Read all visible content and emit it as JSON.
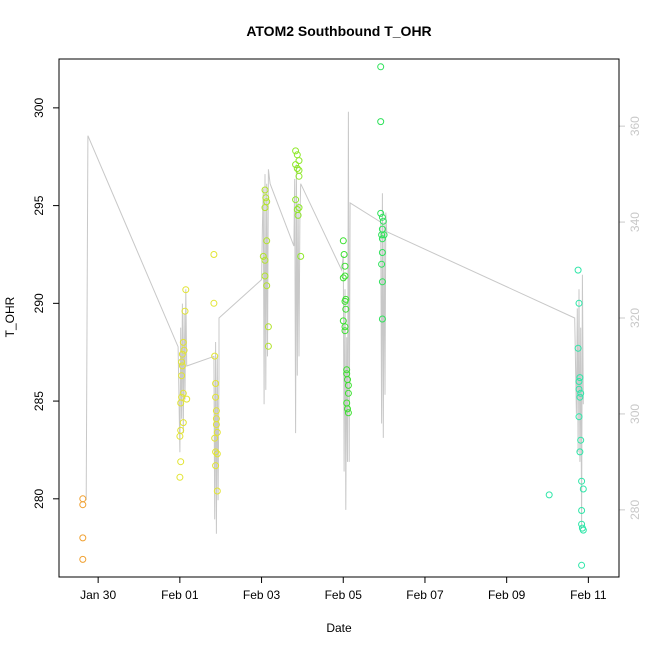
{
  "chart_data": {
    "type": "scatter",
    "title": "ATOM2 Southbound T_OHR",
    "xlabel": "Date",
    "ylabel": "T_OHR",
    "x_ticks": [
      {
        "date": "2022-01-30",
        "label": "Jan 30"
      },
      {
        "date": "2022-02-01",
        "label": "Feb 01"
      },
      {
        "date": "2022-02-03",
        "label": "Feb 03"
      },
      {
        "date": "2022-02-05",
        "label": "Feb 05"
      },
      {
        "date": "2022-02-07",
        "label": "Feb 07"
      },
      {
        "date": "2022-02-09",
        "label": "Feb 09"
      },
      {
        "date": "2022-02-11",
        "label": "Feb 11"
      }
    ],
    "xlim": [
      "2022-01-29T01:00",
      "2022-02-11T18:00"
    ],
    "ylim": [
      276,
      302.5
    ],
    "y_ticks": [
      280,
      285,
      290,
      295,
      300
    ],
    "y2lim": [
      266,
      374
    ],
    "y2_ticks": [
      280,
      300,
      320,
      340,
      360
    ],
    "y2_color": "#c8c8c8",
    "grid": false,
    "series": [
      {
        "color": "#f0a030",
        "points": [
          [
            "2022-01-29T15:00",
            280.0
          ],
          [
            "2022-01-29T15:00",
            279.7
          ],
          [
            "2022-01-29T15:00",
            278.0
          ],
          [
            "2022-01-29T15:00",
            276.9
          ]
        ]
      },
      {
        "color": "#e2e433",
        "points": [
          [
            "2022-02-01T00:00",
            283.2
          ],
          [
            "2022-02-01T00:30",
            284.9
          ],
          [
            "2022-02-01T01:00",
            285.2
          ],
          [
            "2022-02-01T01:00",
            286.3
          ],
          [
            "2022-02-01T01:30",
            286.8
          ],
          [
            "2022-02-01T01:30",
            287.4
          ],
          [
            "2022-02-01T02:00",
            288.0
          ],
          [
            "2022-02-01T02:30",
            287.6
          ],
          [
            "2022-02-01T01:00",
            287.0
          ],
          [
            "2022-02-01T02:00",
            285.4
          ],
          [
            "2022-02-01T03:00",
            289.6
          ],
          [
            "2022-02-01T03:30",
            290.7
          ],
          [
            "2022-02-01T00:30",
            283.5
          ],
          [
            "2022-02-01T00:30",
            281.9
          ],
          [
            "2022-02-01T00:00",
            281.1
          ],
          [
            "2022-02-01T04:00",
            285.1
          ],
          [
            "2022-02-01T02:00",
            283.9
          ],
          [
            "2022-02-01T20:00",
            292.5
          ],
          [
            "2022-02-01T20:00",
            290.0
          ],
          [
            "2022-02-01T20:30",
            287.3
          ],
          [
            "2022-02-01T21:00",
            285.9
          ],
          [
            "2022-02-01T21:00",
            285.2
          ],
          [
            "2022-02-01T21:30",
            284.5
          ],
          [
            "2022-02-01T21:30",
            283.8
          ],
          [
            "2022-02-01T22:00",
            283.4
          ],
          [
            "2022-02-01T20:30",
            283.1
          ],
          [
            "2022-02-01T21:00",
            282.4
          ],
          [
            "2022-02-01T22:00",
            282.3
          ],
          [
            "2022-02-01T21:00",
            281.7
          ],
          [
            "2022-02-01T22:00",
            280.4
          ],
          [
            "2022-02-01T21:30",
            284.1
          ]
        ]
      },
      {
        "color": "#b2e42a",
        "points": [
          [
            "2022-02-03T02:00",
            295.8
          ],
          [
            "2022-02-03T02:30",
            295.4
          ],
          [
            "2022-02-03T03:00",
            295.2
          ],
          [
            "2022-02-03T02:00",
            294.9
          ],
          [
            "2022-02-03T01:00",
            292.4
          ],
          [
            "2022-02-03T02:00",
            292.2
          ],
          [
            "2022-02-03T03:00",
            293.2
          ],
          [
            "2022-02-03T02:00",
            291.4
          ],
          [
            "2022-02-03T03:00",
            290.9
          ],
          [
            "2022-02-03T04:00",
            288.8
          ],
          [
            "2022-02-03T04:00",
            287.8
          ]
        ]
      },
      {
        "color": "#8fe82a",
        "points": [
          [
            "2022-02-03T20:00",
            297.8
          ],
          [
            "2022-02-03T21:00",
            297.6
          ],
          [
            "2022-02-03T22:00",
            297.3
          ],
          [
            "2022-02-03T20:00",
            297.1
          ],
          [
            "2022-02-03T21:00",
            296.9
          ],
          [
            "2022-02-03T22:00",
            296.8
          ],
          [
            "2022-02-03T22:00",
            296.5
          ],
          [
            "2022-02-03T20:00",
            295.3
          ],
          [
            "2022-02-03T21:00",
            294.8
          ],
          [
            "2022-02-03T22:00",
            294.9
          ],
          [
            "2022-02-03T21:30",
            294.5
          ],
          [
            "2022-02-03T23:00",
            292.4
          ]
        ]
      },
      {
        "color": "#3ce030",
        "points": [
          [
            "2022-02-05T00:00",
            293.2
          ],
          [
            "2022-02-05T00:30",
            292.5
          ],
          [
            "2022-02-05T01:00",
            291.9
          ],
          [
            "2022-02-05T00:00",
            291.3
          ],
          [
            "2022-02-05T01:00",
            291.4
          ],
          [
            "2022-02-05T01:30",
            290.2
          ],
          [
            "2022-02-05T01:00",
            290.1
          ],
          [
            "2022-02-05T01:30",
            289.7
          ],
          [
            "2022-02-05T00:00",
            289.1
          ],
          [
            "2022-02-05T01:00",
            288.8
          ],
          [
            "2022-02-05T01:00",
            288.6
          ],
          [
            "2022-02-05T02:00",
            286.6
          ],
          [
            "2022-02-05T02:00",
            286.4
          ],
          [
            "2022-02-05T02:30",
            286.1
          ],
          [
            "2022-02-05T03:00",
            285.8
          ],
          [
            "2022-02-05T03:00",
            285.4
          ],
          [
            "2022-02-05T02:00",
            284.9
          ],
          [
            "2022-02-05T02:30",
            284.6
          ],
          [
            "2022-02-05T03:00",
            284.4
          ]
        ]
      },
      {
        "color": "#2ee25a",
        "points": [
          [
            "2022-02-05T22:00",
            302.1
          ],
          [
            "2022-02-05T22:00",
            299.3
          ],
          [
            "2022-02-05T22:00",
            294.6
          ],
          [
            "2022-02-05T23:00",
            294.4
          ],
          [
            "2022-02-05T23:30",
            294.2
          ],
          [
            "2022-02-05T23:00",
            293.8
          ],
          [
            "2022-02-05T22:30",
            293.5
          ],
          [
            "2022-02-05T23:00",
            293.3
          ],
          [
            "2022-02-06T00:00",
            293.5
          ],
          [
            "2022-02-05T23:00",
            292.6
          ],
          [
            "2022-02-05T22:30",
            292.0
          ],
          [
            "2022-02-05T23:00",
            291.1
          ],
          [
            "2022-02-05T23:00",
            289.2
          ]
        ]
      },
      {
        "color": "#2ee6a8",
        "points": [
          [
            "2022-02-10T01:00",
            280.2
          ],
          [
            "2022-02-10T18:00",
            291.7
          ],
          [
            "2022-02-10T18:30",
            290.0
          ],
          [
            "2022-02-10T18:00",
            287.7
          ],
          [
            "2022-02-10T19:00",
            286.2
          ],
          [
            "2022-02-10T18:30",
            286.0
          ],
          [
            "2022-02-10T18:30",
            285.6
          ],
          [
            "2022-02-10T19:30",
            285.4
          ],
          [
            "2022-02-10T19:00",
            285.2
          ],
          [
            "2022-02-10T18:30",
            284.2
          ],
          [
            "2022-02-10T19:30",
            283.0
          ],
          [
            "2022-02-10T19:00",
            282.4
          ],
          [
            "2022-02-10T20:00",
            280.9
          ],
          [
            "2022-02-10T21:00",
            280.5
          ],
          [
            "2022-02-10T20:00",
            279.4
          ],
          [
            "2022-02-10T20:00",
            278.7
          ],
          [
            "2022-02-10T21:00",
            278.4
          ],
          [
            "2022-02-10T20:30",
            278.5
          ],
          [
            "2022-02-10T20:00",
            276.6
          ]
        ]
      }
    ],
    "secondary_line": {
      "color": "#c8c8c8",
      "axis": "right",
      "points": [
        [
          "2022-01-29T17:00",
          282
        ],
        [
          "2022-01-29T18:00",
          358
        ],
        [
          "2022-01-31T23:00",
          314
        ],
        [
          "2022-02-01T00:00",
          292
        ],
        [
          "2022-02-01T00:30",
          318
        ],
        [
          "2022-02-01T01:00",
          299
        ],
        [
          "2022-02-01T01:30",
          323
        ],
        [
          "2022-02-01T02:00",
          296
        ],
        [
          "2022-02-01T02:30",
          321
        ],
        [
          "2022-02-01T03:00",
          303
        ],
        [
          "2022-02-01T03:30",
          326
        ],
        [
          "2022-02-01T04:00",
          310
        ],
        [
          "2022-02-01T20:00",
          312
        ],
        [
          "2022-02-01T20:30",
          278
        ],
        [
          "2022-02-01T21:00",
          315
        ],
        [
          "2022-02-01T21:30",
          275
        ],
        [
          "2022-02-01T22:00",
          312
        ],
        [
          "2022-02-01T22:30",
          282
        ],
        [
          "2022-02-01T23:00",
          308
        ],
        [
          "2022-02-01T23:00",
          320
        ],
        [
          "2022-02-03T00:00",
          328
        ],
        [
          "2022-02-03T00:30",
          339
        ],
        [
          "2022-02-03T01:00",
          347
        ],
        [
          "2022-02-03T01:30",
          302
        ],
        [
          "2022-02-03T02:00",
          350
        ],
        [
          "2022-02-03T02:30",
          305
        ],
        [
          "2022-02-03T03:00",
          348
        ],
        [
          "2022-02-03T03:30",
          312
        ],
        [
          "2022-02-03T04:00",
          351
        ],
        [
          "2022-02-03T05:00",
          348
        ],
        [
          "2022-02-03T19:00",
          335
        ],
        [
          "2022-02-03T19:30",
          349
        ],
        [
          "2022-02-03T20:00",
          296
        ],
        [
          "2022-02-03T20:30",
          352
        ],
        [
          "2022-02-03T21:00",
          308
        ],
        [
          "2022-02-03T21:30",
          344
        ],
        [
          "2022-02-03T22:00",
          312
        ],
        [
          "2022-02-03T22:30",
          341
        ],
        [
          "2022-02-03T23:00",
          348
        ],
        [
          "2022-02-04T23:00",
          330
        ],
        [
          "2022-02-05T00:00",
          333
        ],
        [
          "2022-02-05T00:30",
          288
        ],
        [
          "2022-02-05T01:00",
          326
        ],
        [
          "2022-02-05T01:30",
          280
        ],
        [
          "2022-02-05T02:00",
          316
        ],
        [
          "2022-02-05T02:30",
          290
        ],
        [
          "2022-02-05T03:00",
          363
        ],
        [
          "2022-02-05T03:30",
          290
        ],
        [
          "2022-02-05T04:00",
          344
        ],
        [
          "2022-02-05T22:00",
          340
        ],
        [
          "2022-02-05T22:30",
          298
        ],
        [
          "2022-02-05T23:00",
          346
        ],
        [
          "2022-02-05T23:30",
          295
        ],
        [
          "2022-02-06T00:00",
          340
        ],
        [
          "2022-02-06T00:30",
          304
        ],
        [
          "2022-02-06T01:00",
          342
        ],
        [
          "2022-02-06T01:30",
          338
        ],
        [
          "2022-02-10T16:00",
          320
        ],
        [
          "2022-02-10T17:00",
          300
        ],
        [
          "2022-02-10T17:30",
          322
        ],
        [
          "2022-02-10T18:00",
          292
        ],
        [
          "2022-02-10T18:30",
          326
        ],
        [
          "2022-02-10T19:00",
          290
        ],
        [
          "2022-02-10T19:30",
          318
        ],
        [
          "2022-02-10T20:00",
          276
        ],
        [
          "2022-02-10T20:30",
          329
        ],
        [
          "2022-02-10T21:00",
          302
        ]
      ]
    }
  }
}
